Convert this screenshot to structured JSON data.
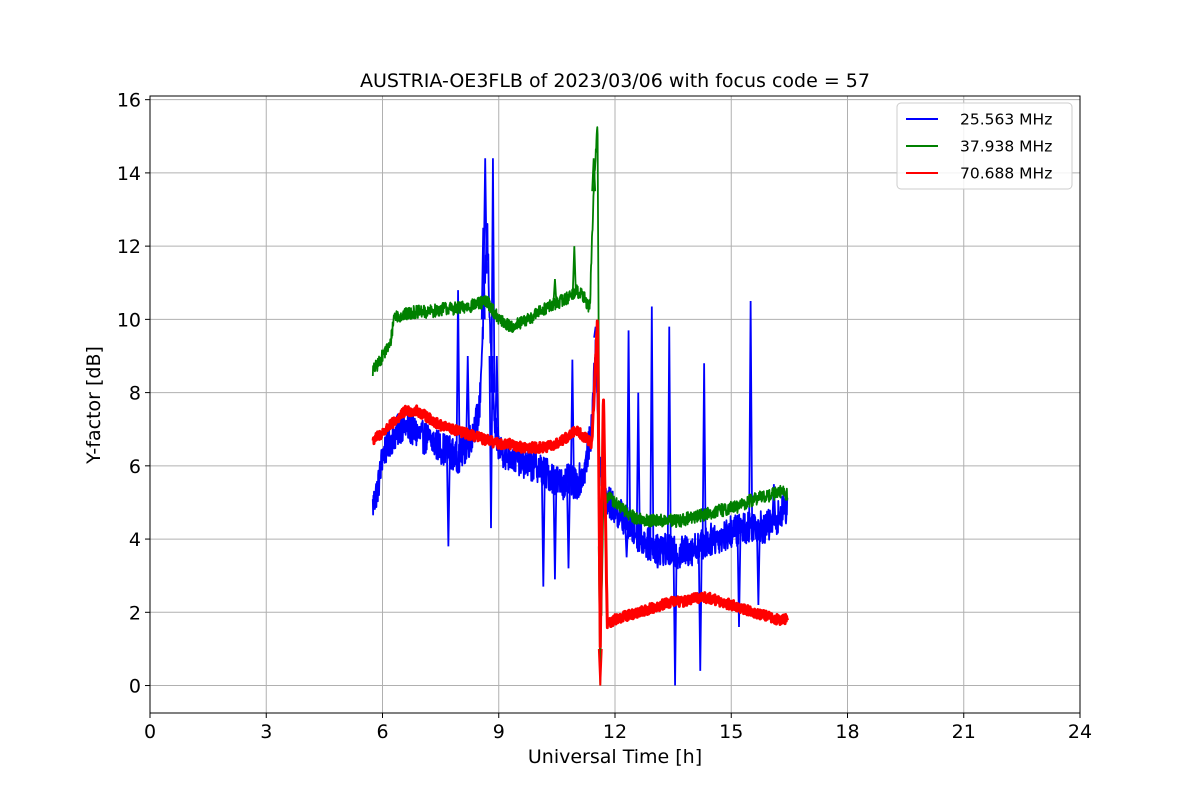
{
  "chart_data": {
    "type": "line",
    "title": "AUSTRIA-OE3FLB of 2023/03/06 with focus code = 57",
    "xlabel": "Universal Time [h]",
    "ylabel": "Y-factor [dB]",
    "xlim": [
      0,
      24
    ],
    "ylim": [
      -0.75,
      16.1
    ],
    "xticks": [
      0,
      3,
      6,
      9,
      12,
      15,
      18,
      21,
      24
    ],
    "yticks": [
      0,
      2,
      4,
      6,
      8,
      10,
      12,
      14,
      16
    ],
    "grid": true,
    "legend_position": "top-right",
    "series": [
      {
        "name": "25.563 MHz",
        "color": "#0000ff",
        "x": [
          5.75,
          5.9,
          6.0,
          6.1,
          6.2,
          6.35,
          6.5,
          6.75,
          7.0,
          7.25,
          7.5,
          7.75,
          7.9,
          8.0,
          8.15,
          8.3,
          8.5,
          8.6,
          8.7,
          8.8,
          8.9,
          9.0,
          9.2,
          9.5,
          9.8,
          10.0,
          10.2,
          10.4,
          10.6,
          10.8,
          11.0,
          11.2,
          11.4,
          11.5,
          11.6,
          11.7,
          11.85,
          12.0,
          12.2,
          12.5,
          12.8,
          13.0,
          13.3,
          13.6,
          13.9,
          14.2,
          14.5,
          14.8,
          15.0,
          15.3,
          15.6,
          15.9,
          16.2,
          16.45
        ],
        "y": [
          4.9,
          5.5,
          6.3,
          6.5,
          6.7,
          6.9,
          7.1,
          7.0,
          6.8,
          6.7,
          6.5,
          6.4,
          6.2,
          6.3,
          6.5,
          6.8,
          7.5,
          10.0,
          12.5,
          9.0,
          7.0,
          6.5,
          6.3,
          6.2,
          6.0,
          6.0,
          5.8,
          5.7,
          5.5,
          5.6,
          5.5,
          5.8,
          7.0,
          9.5,
          6.0,
          5.2,
          5.0,
          4.8,
          4.6,
          4.2,
          3.9,
          3.8,
          3.7,
          3.6,
          3.7,
          3.8,
          4.0,
          4.1,
          4.2,
          4.3,
          4.4,
          4.3,
          4.6,
          4.9
        ],
        "spikes": [
          [
            8.65,
            14.4
          ],
          [
            8.85,
            14.4
          ],
          [
            8.6,
            12.5
          ],
          [
            8.95,
            9.0
          ],
          [
            7.95,
            10.8
          ],
          [
            8.2,
            9.0
          ],
          [
            10.9,
            8.9
          ],
          [
            11.5,
            9.8
          ],
          [
            12.35,
            9.7
          ],
          [
            12.6,
            8.0
          ],
          [
            12.95,
            10.35
          ],
          [
            13.4,
            9.8
          ],
          [
            14.3,
            8.8
          ],
          [
            15.5,
            10.5
          ],
          [
            16.1,
            5.5
          ]
        ],
        "dips": [
          [
            7.7,
            3.8
          ],
          [
            8.8,
            4.3
          ],
          [
            10.15,
            2.7
          ],
          [
            10.45,
            2.9
          ],
          [
            10.8,
            3.2
          ],
          [
            12.3,
            3.5
          ],
          [
            13.1,
            3.2
          ],
          [
            13.55,
            0.0
          ],
          [
            14.2,
            0.4
          ],
          [
            15.2,
            1.6
          ],
          [
            15.7,
            2.2
          ]
        ]
      },
      {
        "name": "37.938 MHz",
        "color": "#008000",
        "x": [
          5.75,
          5.9,
          6.05,
          6.2,
          6.3,
          6.5,
          6.8,
          7.2,
          7.6,
          8.0,
          8.4,
          8.7,
          9.0,
          9.3,
          9.6,
          9.9,
          10.2,
          10.4,
          10.6,
          10.8,
          11.0,
          11.2,
          11.35,
          11.45,
          11.55,
          11.6,
          11.65,
          11.7,
          11.9,
          12.2,
          12.5,
          12.8,
          13.1,
          13.4,
          13.7,
          14.0,
          14.4,
          14.8,
          15.2,
          15.6,
          16.0,
          16.3,
          16.45
        ],
        "y": [
          8.6,
          8.8,
          9.1,
          9.3,
          10.1,
          10.1,
          10.2,
          10.2,
          10.3,
          10.3,
          10.4,
          10.5,
          10.0,
          9.8,
          9.9,
          10.1,
          10.3,
          10.4,
          10.5,
          10.6,
          10.8,
          10.6,
          10.3,
          13.5,
          15.3,
          5.0,
          2.0,
          5.2,
          5.1,
          4.8,
          4.6,
          4.5,
          4.5,
          4.5,
          4.5,
          4.6,
          4.7,
          4.8,
          4.9,
          5.1,
          5.2,
          5.3,
          5.2
        ],
        "spikes": [
          [
            10.45,
            11.1
          ],
          [
            10.95,
            12.0
          ],
          [
            11.45,
            14.4
          ]
        ],
        "dips": [
          [
            11.62,
            0.0
          ]
        ]
      },
      {
        "name": "70.688 MHz",
        "color": "#ff0000",
        "x": [
          5.75,
          6.0,
          6.3,
          6.6,
          6.9,
          7.2,
          7.5,
          7.8,
          8.1,
          8.4,
          8.7,
          9.0,
          9.3,
          9.6,
          9.9,
          10.2,
          10.5,
          10.8,
          11.0,
          11.2,
          11.4,
          11.55,
          11.62,
          11.7,
          11.8,
          12.0,
          12.3,
          12.6,
          12.9,
          13.2,
          13.5,
          13.8,
          14.1,
          14.4,
          14.7,
          15.0,
          15.3,
          15.6,
          15.9,
          16.2,
          16.45
        ],
        "y": [
          6.7,
          6.9,
          7.2,
          7.5,
          7.5,
          7.3,
          7.1,
          7.0,
          6.9,
          6.8,
          6.7,
          6.6,
          6.6,
          6.5,
          6.5,
          6.5,
          6.6,
          6.8,
          7.0,
          6.8,
          6.6,
          10.0,
          1.0,
          8.0,
          1.7,
          1.8,
          1.9,
          2.0,
          2.1,
          2.2,
          2.3,
          2.3,
          2.4,
          2.4,
          2.3,
          2.2,
          2.1,
          2.0,
          1.9,
          1.8,
          1.8
        ],
        "spikes": [],
        "dips": [
          [
            11.62,
            0.0
          ]
        ]
      }
    ]
  }
}
